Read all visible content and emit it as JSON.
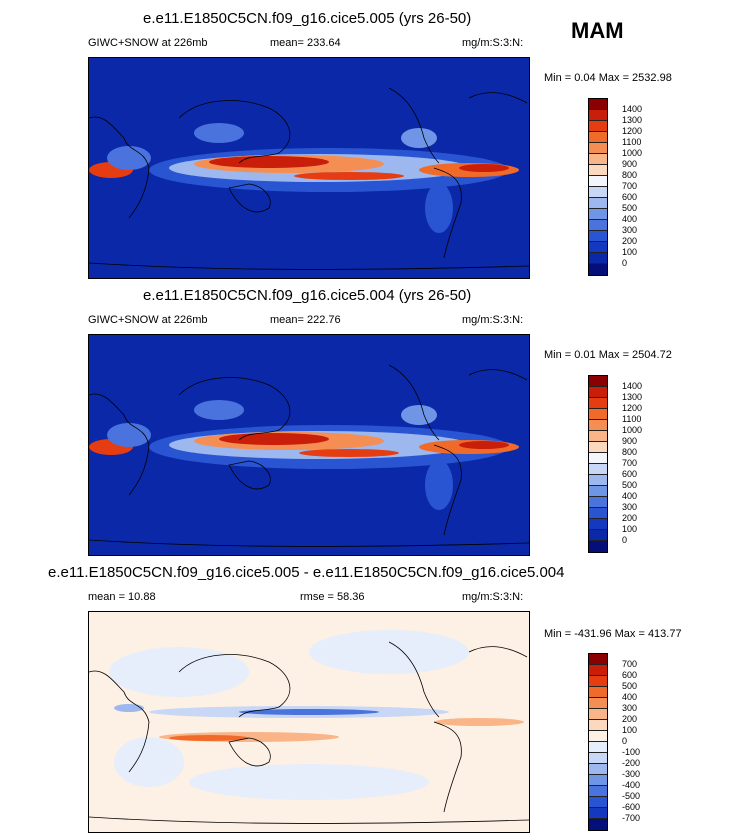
{
  "season": "MAM",
  "panels": [
    {
      "title": "e.e11.E1850C5CN.f09_g16.cice5.005 (yrs 26-50)",
      "left_label": "GIWC+SNOW at 226mb",
      "center_label": "mean= 233.64",
      "units": "mg/m:S:3:N:",
      "minmax": "Min =   0.04 Max = 2532.98",
      "levels": [
        "1400",
        "1300",
        "1200",
        "1100",
        "1000",
        "900",
        "800",
        "700",
        "600",
        "500",
        "400",
        "300",
        "200",
        "100",
        "0"
      ],
      "colors": [
        "#8b0000",
        "#c81e0a",
        "#e63c12",
        "#f06a2a",
        "#f58e52",
        "#f9b487",
        "#fcd9be",
        "#f2f5fb",
        "#c7d7f5",
        "#9cb8ef",
        "#6f95e6",
        "#4a73dd",
        "#2a55d2",
        "#1438c0",
        "#0a28a8",
        "#050f7a"
      ]
    },
    {
      "title": "e.e11.E1850C5CN.f09_g16.cice5.004 (yrs 26-50)",
      "left_label": "GIWC+SNOW at 226mb",
      "center_label": "mean= 222.76",
      "units": "mg/m:S:3:N:",
      "minmax": "Min =   0.01 Max = 2504.72",
      "levels": [
        "1400",
        "1300",
        "1200",
        "1100",
        "1000",
        "900",
        "800",
        "700",
        "600",
        "500",
        "400",
        "300",
        "200",
        "100",
        "0"
      ],
      "colors": [
        "#8b0000",
        "#c81e0a",
        "#e63c12",
        "#f06a2a",
        "#f58e52",
        "#f9b487",
        "#fcd9be",
        "#f2f5fb",
        "#c7d7f5",
        "#9cb8ef",
        "#6f95e6",
        "#4a73dd",
        "#2a55d2",
        "#1438c0",
        "#0a28a8",
        "#050f7a"
      ]
    },
    {
      "title": "e.e11.E1850C5CN.f09_g16.cice5.005 - e.e11.E1850C5CN.f09_g16.cice5.004",
      "left_label": "mean =  10.88",
      "center_label": "rmse =  58.36",
      "units": "mg/m:S:3:N:",
      "minmax": "Min = -431.96 Max = 413.77",
      "levels": [
        "700",
        "600",
        "500",
        "400",
        "300",
        "200",
        "100",
        "0",
        "-100",
        "-200",
        "-300",
        "-400",
        "-500",
        "-600",
        "-700"
      ],
      "colors": [
        "#8b0000",
        "#c81e0a",
        "#e63c12",
        "#f06a2a",
        "#f58e52",
        "#f9b487",
        "#fcd9be",
        "#fdf0e4",
        "#e6eefb",
        "#c7d7f5",
        "#9cb8ef",
        "#6f95e6",
        "#4a73dd",
        "#2a55d2",
        "#1438c0",
        "#050f7a"
      ]
    }
  ]
}
